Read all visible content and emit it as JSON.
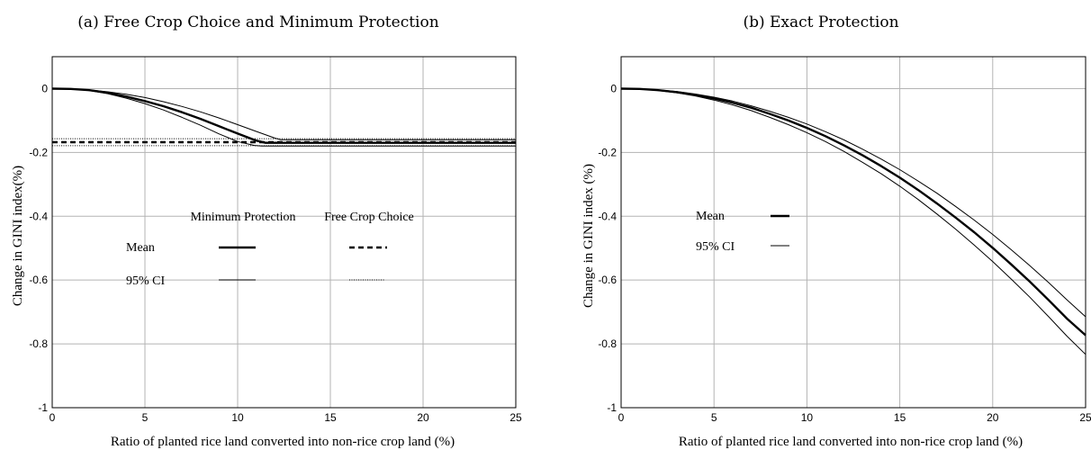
{
  "chart_data": [
    {
      "type": "line",
      "title": "(a) Free Crop Choice and Minimum Protection",
      "xlabel": "Ratio of planted rice land converted into non-rice crop land (%)",
      "ylabel": "Change in GINI index(%)",
      "xlim": [
        0,
        25
      ],
      "ylim": [
        -1,
        0.1
      ],
      "xticks": [
        0,
        5,
        10,
        15,
        20,
        25
      ],
      "yticks": [
        0,
        -0.2,
        -0.4,
        -0.6,
        -0.8,
        -1
      ],
      "xtick_labels": [
        "0",
        "5",
        "10",
        "15",
        "20",
        "25"
      ],
      "ytick_labels": [
        "0",
        "-0.2",
        "-0.4",
        "-0.6",
        "-0.8",
        "-1"
      ],
      "grid": true,
      "legend": {
        "columns": [
          "Minimum Protection",
          "Free Crop Choice"
        ],
        "rows": [
          "Mean",
          "95% CI"
        ]
      },
      "series": [
        {
          "name": "Minimum Protection Mean",
          "style": "solid-thick",
          "x": [
            0,
            1,
            2,
            3,
            4,
            5,
            6,
            7,
            8,
            9,
            10,
            11,
            11.5,
            12,
            25
          ],
          "y": [
            0,
            -0.001,
            -0.005,
            -0.013,
            -0.025,
            -0.039,
            -0.055,
            -0.074,
            -0.095,
            -0.118,
            -0.141,
            -0.163,
            -0.17,
            -0.17,
            -0.17
          ]
        },
        {
          "name": "Minimum Protection 95% CI upper",
          "style": "solid-thin",
          "x": [
            0,
            1,
            2,
            3,
            4,
            5,
            6,
            7,
            8,
            9,
            10,
            11,
            12,
            12.3,
            25
          ],
          "y": [
            0,
            -0.001,
            -0.004,
            -0.01,
            -0.018,
            -0.028,
            -0.041,
            -0.056,
            -0.073,
            -0.092,
            -0.113,
            -0.134,
            -0.155,
            -0.16,
            -0.16
          ]
        },
        {
          "name": "Minimum Protection 95% CI lower",
          "style": "solid-thin",
          "x": [
            0,
            1,
            2,
            3,
            4,
            5,
            6,
            7,
            8,
            9,
            10,
            10.9,
            11.3,
            25
          ],
          "y": [
            0,
            -0.001,
            -0.006,
            -0.016,
            -0.03,
            -0.047,
            -0.067,
            -0.09,
            -0.115,
            -0.142,
            -0.166,
            -0.178,
            -0.18,
            -0.18
          ]
        },
        {
          "name": "Free Crop Choice Mean",
          "style": "dashed-thick",
          "x": [
            0,
            25
          ],
          "y": [
            -0.168,
            -0.168
          ]
        },
        {
          "name": "Free Crop Choice 95% CI upper",
          "style": "dotted-thin",
          "x": [
            0,
            25
          ],
          "y": [
            -0.157,
            -0.157
          ]
        },
        {
          "name": "Free Crop Choice 95% CI lower",
          "style": "dotted-thin",
          "x": [
            0,
            25
          ],
          "y": [
            -0.179,
            -0.179
          ]
        }
      ]
    },
    {
      "type": "line",
      "title": "(b) Exact Protection",
      "xlabel": "Ratio of planted rice land converted into non-rice crop land (%)",
      "ylabel": "Change in GINI index (%)",
      "xlim": [
        0,
        25
      ],
      "ylim": [
        -1,
        0.1
      ],
      "xticks": [
        0,
        5,
        10,
        15,
        20,
        25
      ],
      "yticks": [
        0,
        -0.2,
        -0.4,
        -0.6,
        -0.8,
        -1
      ],
      "xtick_labels": [
        "0",
        "5",
        "10",
        "15",
        "20",
        "25"
      ],
      "ytick_labels": [
        "0",
        "-0.2",
        "-0.4",
        "-0.6",
        "-0.8",
        "-1"
      ],
      "grid": true,
      "legend": {
        "columns": [],
        "rows": [
          "Mean",
          "95% CI"
        ]
      },
      "series": [
        {
          "name": "Mean",
          "style": "solid-thick",
          "x": [
            0,
            1,
            2,
            3,
            4,
            5,
            6,
            7,
            8,
            9,
            10,
            11,
            12,
            13,
            14,
            15,
            16,
            17,
            18,
            19,
            20,
            21,
            22,
            23,
            24,
            25
          ],
          "y": [
            0,
            -0.001,
            -0.005,
            -0.011,
            -0.02,
            -0.031,
            -0.044,
            -0.06,
            -0.079,
            -0.1,
            -0.123,
            -0.149,
            -0.178,
            -0.209,
            -0.243,
            -0.279,
            -0.318,
            -0.36,
            -0.404,
            -0.45,
            -0.499,
            -0.551,
            -0.605,
            -0.662,
            -0.721,
            -0.773
          ]
        },
        {
          "name": "95% CI upper",
          "style": "solid-thin",
          "x": [
            0,
            1,
            2,
            3,
            4,
            5,
            6,
            7,
            8,
            9,
            10,
            11,
            12,
            13,
            14,
            15,
            16,
            17,
            18,
            19,
            20,
            21,
            22,
            23,
            24,
            25
          ],
          "y": [
            0,
            -0.001,
            -0.004,
            -0.009,
            -0.017,
            -0.027,
            -0.039,
            -0.054,
            -0.071,
            -0.09,
            -0.111,
            -0.135,
            -0.161,
            -0.19,
            -0.221,
            -0.254,
            -0.29,
            -0.328,
            -0.369,
            -0.412,
            -0.457,
            -0.505,
            -0.555,
            -0.607,
            -0.662,
            -0.715
          ]
        },
        {
          "name": "95% CI lower",
          "style": "solid-thin",
          "x": [
            0,
            1,
            2,
            3,
            4,
            5,
            6,
            7,
            8,
            9,
            10,
            11,
            12,
            13,
            14,
            15,
            16,
            17,
            18,
            19,
            20,
            21,
            22,
            23,
            24,
            25
          ],
          "y": [
            0,
            -0.001,
            -0.006,
            -0.013,
            -0.023,
            -0.036,
            -0.051,
            -0.069,
            -0.09,
            -0.113,
            -0.138,
            -0.166,
            -0.197,
            -0.231,
            -0.267,
            -0.306,
            -0.348,
            -0.393,
            -0.44,
            -0.49,
            -0.542,
            -0.597,
            -0.654,
            -0.714,
            -0.776,
            -0.833
          ]
        }
      ]
    }
  ]
}
